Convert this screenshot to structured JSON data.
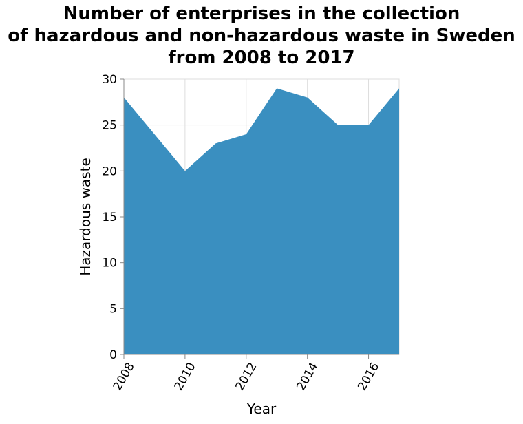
{
  "chart_data": {
    "type": "area",
    "title_lines": [
      "Number of enterprises in the collection",
      "of hazardous and non-hazardous waste in Sweden",
      "from 2008 to 2017"
    ],
    "xlabel": "Year",
    "ylabel": "Hazardous waste",
    "x": [
      2008,
      2009,
      2010,
      2011,
      2012,
      2013,
      2014,
      2015,
      2016,
      2017
    ],
    "values": [
      28,
      24,
      20,
      23,
      24,
      29,
      28,
      25,
      25,
      29
    ],
    "xlim": [
      2008,
      2017
    ],
    "ylim": [
      0,
      30
    ],
    "x_ticks": [
      "2008",
      "2010",
      "2012",
      "2014",
      "2016"
    ],
    "y_ticks": [
      "0",
      "5",
      "10",
      "15",
      "20",
      "25",
      "30"
    ],
    "grid": true,
    "color": "#3a8fc0"
  }
}
